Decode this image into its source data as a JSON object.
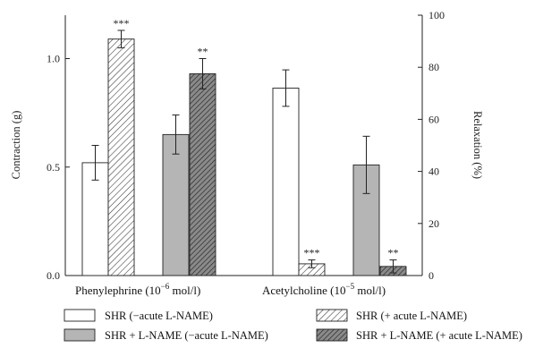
{
  "chart_data": {
    "type": "bar",
    "left_axis": {
      "label": "Contraction (g)",
      "min": 0,
      "max": 1.2,
      "ticks": [
        "0.0",
        "0.5",
        "1.0"
      ],
      "tick_values": [
        0,
        0.5,
        1.0
      ]
    },
    "right_axis": {
      "label": "Relaxation (%)",
      "min": 0,
      "max": 100,
      "ticks": [
        "0",
        "20",
        "40",
        "60",
        "80",
        "100"
      ],
      "tick_values": [
        0,
        20,
        40,
        60,
        80,
        100
      ]
    },
    "groups": [
      {
        "label_main": "Phenylephrine (10",
        "label_exp": "−6",
        "label_tail": " mol/l)",
        "axis": "left"
      },
      {
        "label_main": "Acetylcholine (10",
        "label_exp": "−5",
        "label_tail": " mol/l)",
        "axis": "right"
      }
    ],
    "series": [
      {
        "name": "SHR (−acute L-NAME)",
        "style": "white"
      },
      {
        "name": "SHR (+ acute L-NAME)",
        "style": "hatch-light"
      },
      {
        "name": "SHR + L-NAME (−acute L-NAME)",
        "style": "gray"
      },
      {
        "name": "SHR + L-NAME (+ acute L-NAME)",
        "style": "hatch-dark"
      }
    ],
    "bars": [
      {
        "group": 0,
        "series": 0,
        "value": 0.52,
        "error": 0.08,
        "sig": ""
      },
      {
        "group": 0,
        "series": 1,
        "value": 1.09,
        "error": 0.04,
        "sig": "***"
      },
      {
        "group": 0,
        "series": 2,
        "value": 0.65,
        "error": 0.09,
        "sig": ""
      },
      {
        "group": 0,
        "series": 3,
        "value": 0.93,
        "error": 0.07,
        "sig": "**"
      },
      {
        "group": 1,
        "series": 0,
        "value": 72,
        "error": 7,
        "sig": ""
      },
      {
        "group": 1,
        "series": 1,
        "value": 4.5,
        "error": 1.5,
        "sig": "***"
      },
      {
        "group": 1,
        "series": 2,
        "value": 42.5,
        "error": 11,
        "sig": ""
      },
      {
        "group": 1,
        "series": 3,
        "value": 3.5,
        "error": 2.5,
        "sig": "**"
      }
    ],
    "legend_position": "bottom"
  }
}
